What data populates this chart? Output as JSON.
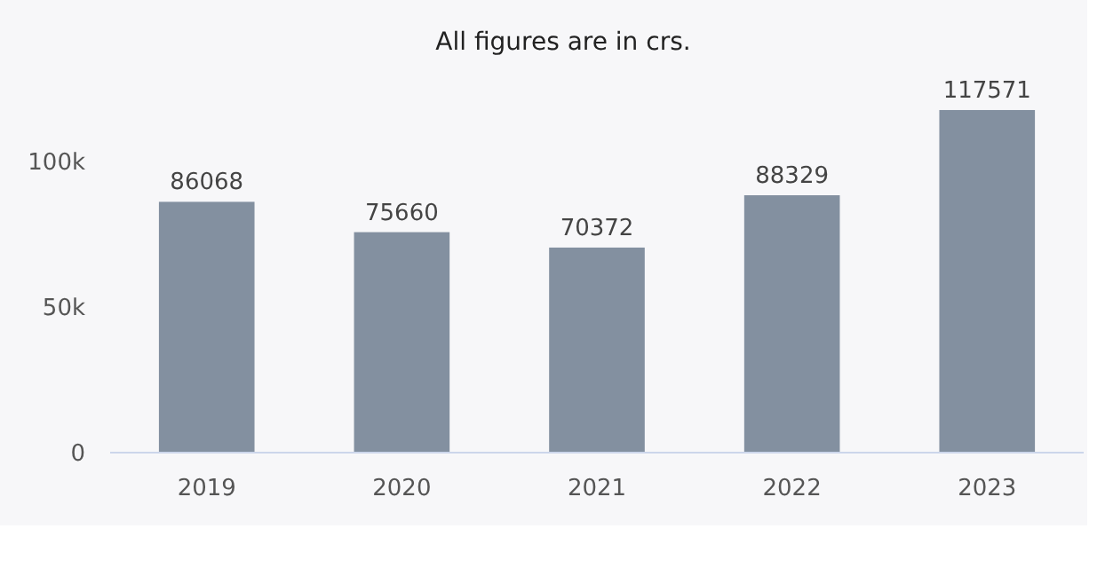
{
  "chart_data": {
    "type": "bar",
    "title": "All figures are in crs.",
    "categories": [
      "2019",
      "2020",
      "2021",
      "2022",
      "2023"
    ],
    "values": [
      86068,
      75660,
      70372,
      88329,
      117571
    ],
    "color": "#8390a0",
    "ylim": [
      0,
      120000
    ],
    "yticks": [
      0,
      {
        "value": 50000,
        "label": "50k"
      },
      {
        "value": 100000,
        "label": "100k"
      }
    ],
    "data_labels": true,
    "grid": false
  }
}
